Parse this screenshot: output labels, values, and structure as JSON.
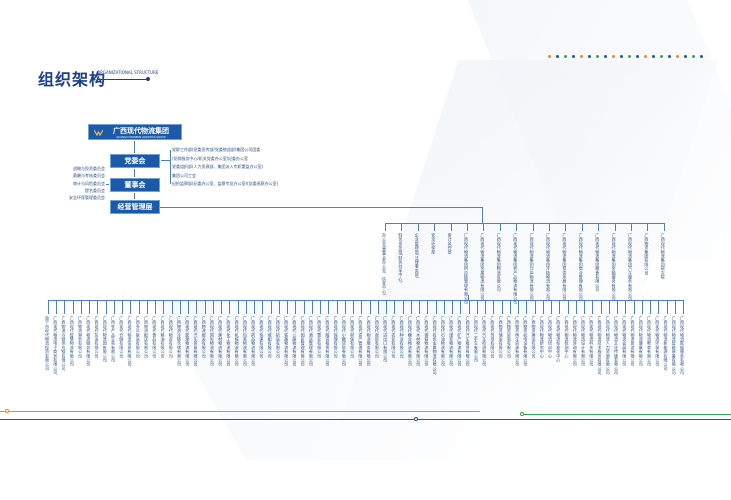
{
  "header": {
    "title": "组织架构",
    "subtitle": "ORGANIZATIONAL STRUCTURE"
  },
  "logo": {
    "name": "广西现代物流集团",
    "english": "GUANGXI MODERN LOGISTICS GROUP"
  },
  "boxes": {
    "party": "党委会",
    "board": "董事会",
    "management": "经营管理层"
  },
  "board_committees": [
    "战略与投资委员会",
    "薪酬与考核委员会",
    "审计与风险委员会",
    "提名委员会",
    "安全环保管理委员会"
  ],
  "party_bodies": [
    "党群工作部(党委宣传部/党委统战部/集团公司团委",
    "/党群服务中心/机关党委办公室/纪委办公室",
    "党委组织部(人力资源部、集团派入专职董监办公室)",
    "集团公司工会",
    "纪检监察部(纪委办公室、监察专员办公室)(党委巡察办公室)"
  ],
  "departments": [
    "办公室(董事会办公室、信息中心)",
    "财务资金部(财务共享中心)",
    "企业管理部(法律事务部)",
    "安全环保部",
    "审计风控部"
  ],
  "subsidiaries_level1": [
    "广西现代物流集团供应链管理有限公司",
    "广西现代物流集团金属物流有限公司",
    "广西现代物流集团物流有限公司",
    "广西现代物流集团农产品物流有限公司",
    "广西现代物流集团口岸物流有限公司",
    "广西现代物流集团冷链物流有限公司",
    "广西现代物流集团投资发展有限公司",
    "广西现代物流集团商业管理有限公司",
    "广西现代物流集团粮食有限公司",
    "广西现代物流集团金融服务有限公司",
    "广西现代物流集团汽车服务有限公司",
    "广西物资集团有限公司",
    "广西现代物流集团研究院"
  ],
  "subsidiaries_level2": [
    "南宁市现代物流投资有限公司",
    "广西现代物流电子商务有限公司",
    "广西物流冷链供应链有限公司",
    "广西现代智慧物流有限公司",
    "广西物流港务有限公司",
    "广西现代物流服务有限公司",
    "广西现代货运有限公司",
    "广西现代物流园有限公司",
    "广西农产品交易有限公司",
    "广西现代仓储有限公司",
    "广西现代物流信息有限公司",
    "广西多式联运有限公司",
    "广西物流配送有限公司",
    "广西现代食品有限公司",
    "广西现代粮油有限公司",
    "广西现代物资有限公司",
    "广西物流冷链仓储有限公司",
    "广西现代能源物流有限公司",
    "广西现代汽车贸易有限公司",
    "广西物流报关有限公司",
    "广西现代国际物流有限公司",
    "广西现代建材物流有限公司",
    "广西现代化工物流有限公司",
    "广西现代机械物流有限公司",
    "广西现代包装物流有限公司",
    "广西现代药品物流有限公司",
    "广西现代快递有限公司",
    "广西现代城配有限公司",
    "广西现代航运有限公司",
    "广西现代铁路物流有限公司",
    "广西现代公路物流有限公司",
    "广西现代园区管理有限公司",
    "广西现代酒店管理有限公司",
    "广西现代置业有限公司",
    "广西现代融资租赁有限公司",
    "广西现代保理有限公司",
    "广西现代小额贷款有限公司",
    "广西现代担保有限公司",
    "广西现代资产管理有限公司",
    "广西现代物业服务有限公司",
    "广西现代商贸有限公司",
    "广西现代进出口有限公司",
    "广西现代农业有限公司",
    "广西现代种业有限公司",
    "广西现代糖业物流有限公司",
    "广西现代木材物流有限公司",
    "广西现代钢铁物流有限公司",
    "广西现代有色金属物流有限公司",
    "广西现代石油物流有限公司",
    "广西现代煤炭物流有限公司",
    "广西现代矿产物流有限公司",
    "广西现代汽车租赁有限公司",
    "广西现代二手车有限公司",
    "广西现代汽车检测有限公司",
    "广西现代驾培有限公司",
    "广西物资储运有限公司",
    "广西物资贸易有限公司",
    "广西物资再生资源有限公司",
    "广西物资机电设备有限公司",
    "广西物资建设有限公司",
    "广西现代物流研究中心",
    "广西现代物流培训中心",
    "广西现代物流标准化中心",
    "广西现代物流检测中心",
    "广西现代物流咨询有限公司",
    "广西现代物流设计有限公司",
    "广西现代物流科技有限公司",
    "广西现代物流技术服务有限公司",
    "广西现代物流人力资源有限公司",
    "广西现代物流文化传媒有限公司",
    "广西现代物流会展有限公司",
    "广西现代物流旅游有限公司",
    "广西现代物流健康有限公司",
    "广西现代物流教育有限公司",
    "广西现代物流环保有限公司",
    "广西现代物流新能源有限公司",
    "广西现代物流智能装备有限公司",
    "广西现代物流数据服务有限公司"
  ],
  "colors": {
    "primary": "#1a5aa8",
    "line": "#4e7fc2",
    "text": "#2a4f86",
    "accent_orange": "#f08a24",
    "accent_green": "#3aa655"
  }
}
